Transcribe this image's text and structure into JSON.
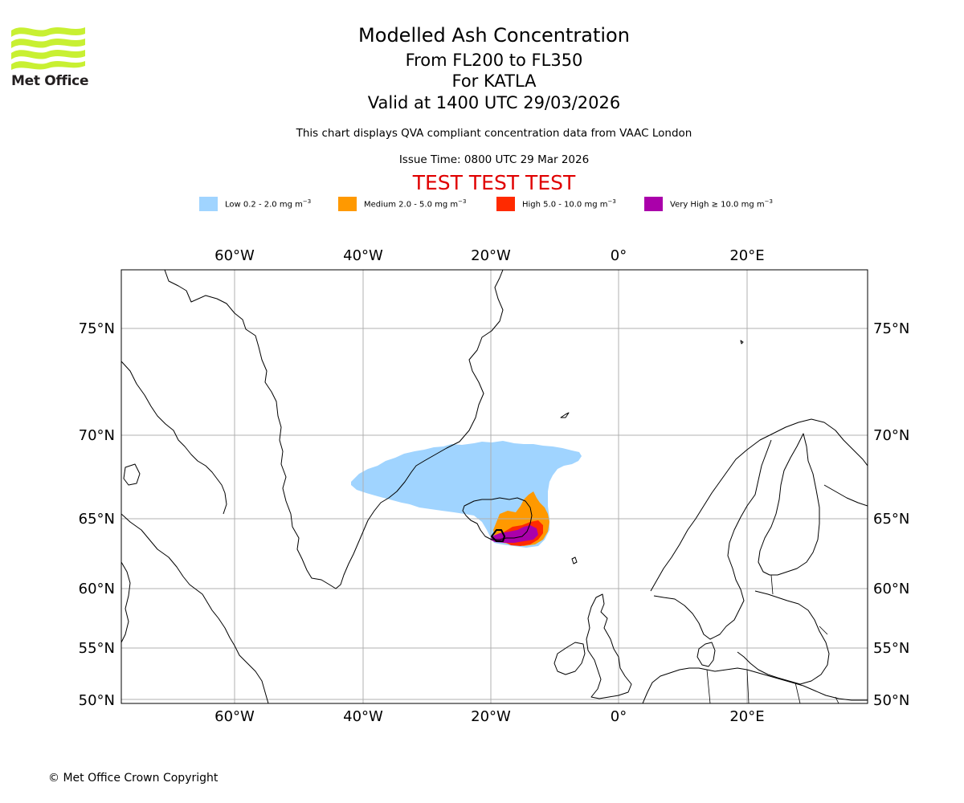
{
  "branding": {
    "logo_text": "Met Office",
    "logo_color": "#c8f032",
    "copyright": "© Met Office Crown Copyright"
  },
  "header": {
    "title": "Modelled Ash Concentration",
    "levels": "From FL200 to FL350",
    "volcano": "For KATLA",
    "valid": "Valid at 1400 UTC 29/03/2026",
    "compliance": "This chart displays QVA compliant concentration data from VAAC London",
    "issue_time": "Issue Time: 0800 UTC 29 Mar 2026",
    "test_banner": "TEST TEST TEST"
  },
  "legend": [
    {
      "label_text": "Low 0.2 - 2.0 mg m",
      "unit_exp": "−3",
      "color": "#a0d4ff"
    },
    {
      "label_text": "Medium 2.0 - 5.0 mg m",
      "unit_exp": "−3",
      "color": "#ff9900"
    },
    {
      "label_text": "High 5.0 - 10.0 mg m",
      "unit_exp": "−3",
      "color": "#ff2a00"
    },
    {
      "label_text": "Very High  ≥  10.0 mg m",
      "unit_exp": "−3",
      "color": "#aa00aa"
    }
  ],
  "map": {
    "projection": "Polar-like, 77°W to 37°E, 50°N to 78°N",
    "lon_ticks": [
      "60°W",
      "40°W",
      "20°W",
      "0°",
      "20°E"
    ],
    "lat_ticks": [
      "75°N",
      "70°N",
      "65°N",
      "60°N",
      "55°N",
      "50°N"
    ],
    "volcano_name": "KATLA",
    "volcano_lat": 63.63,
    "volcano_lon": -19.05
  }
}
